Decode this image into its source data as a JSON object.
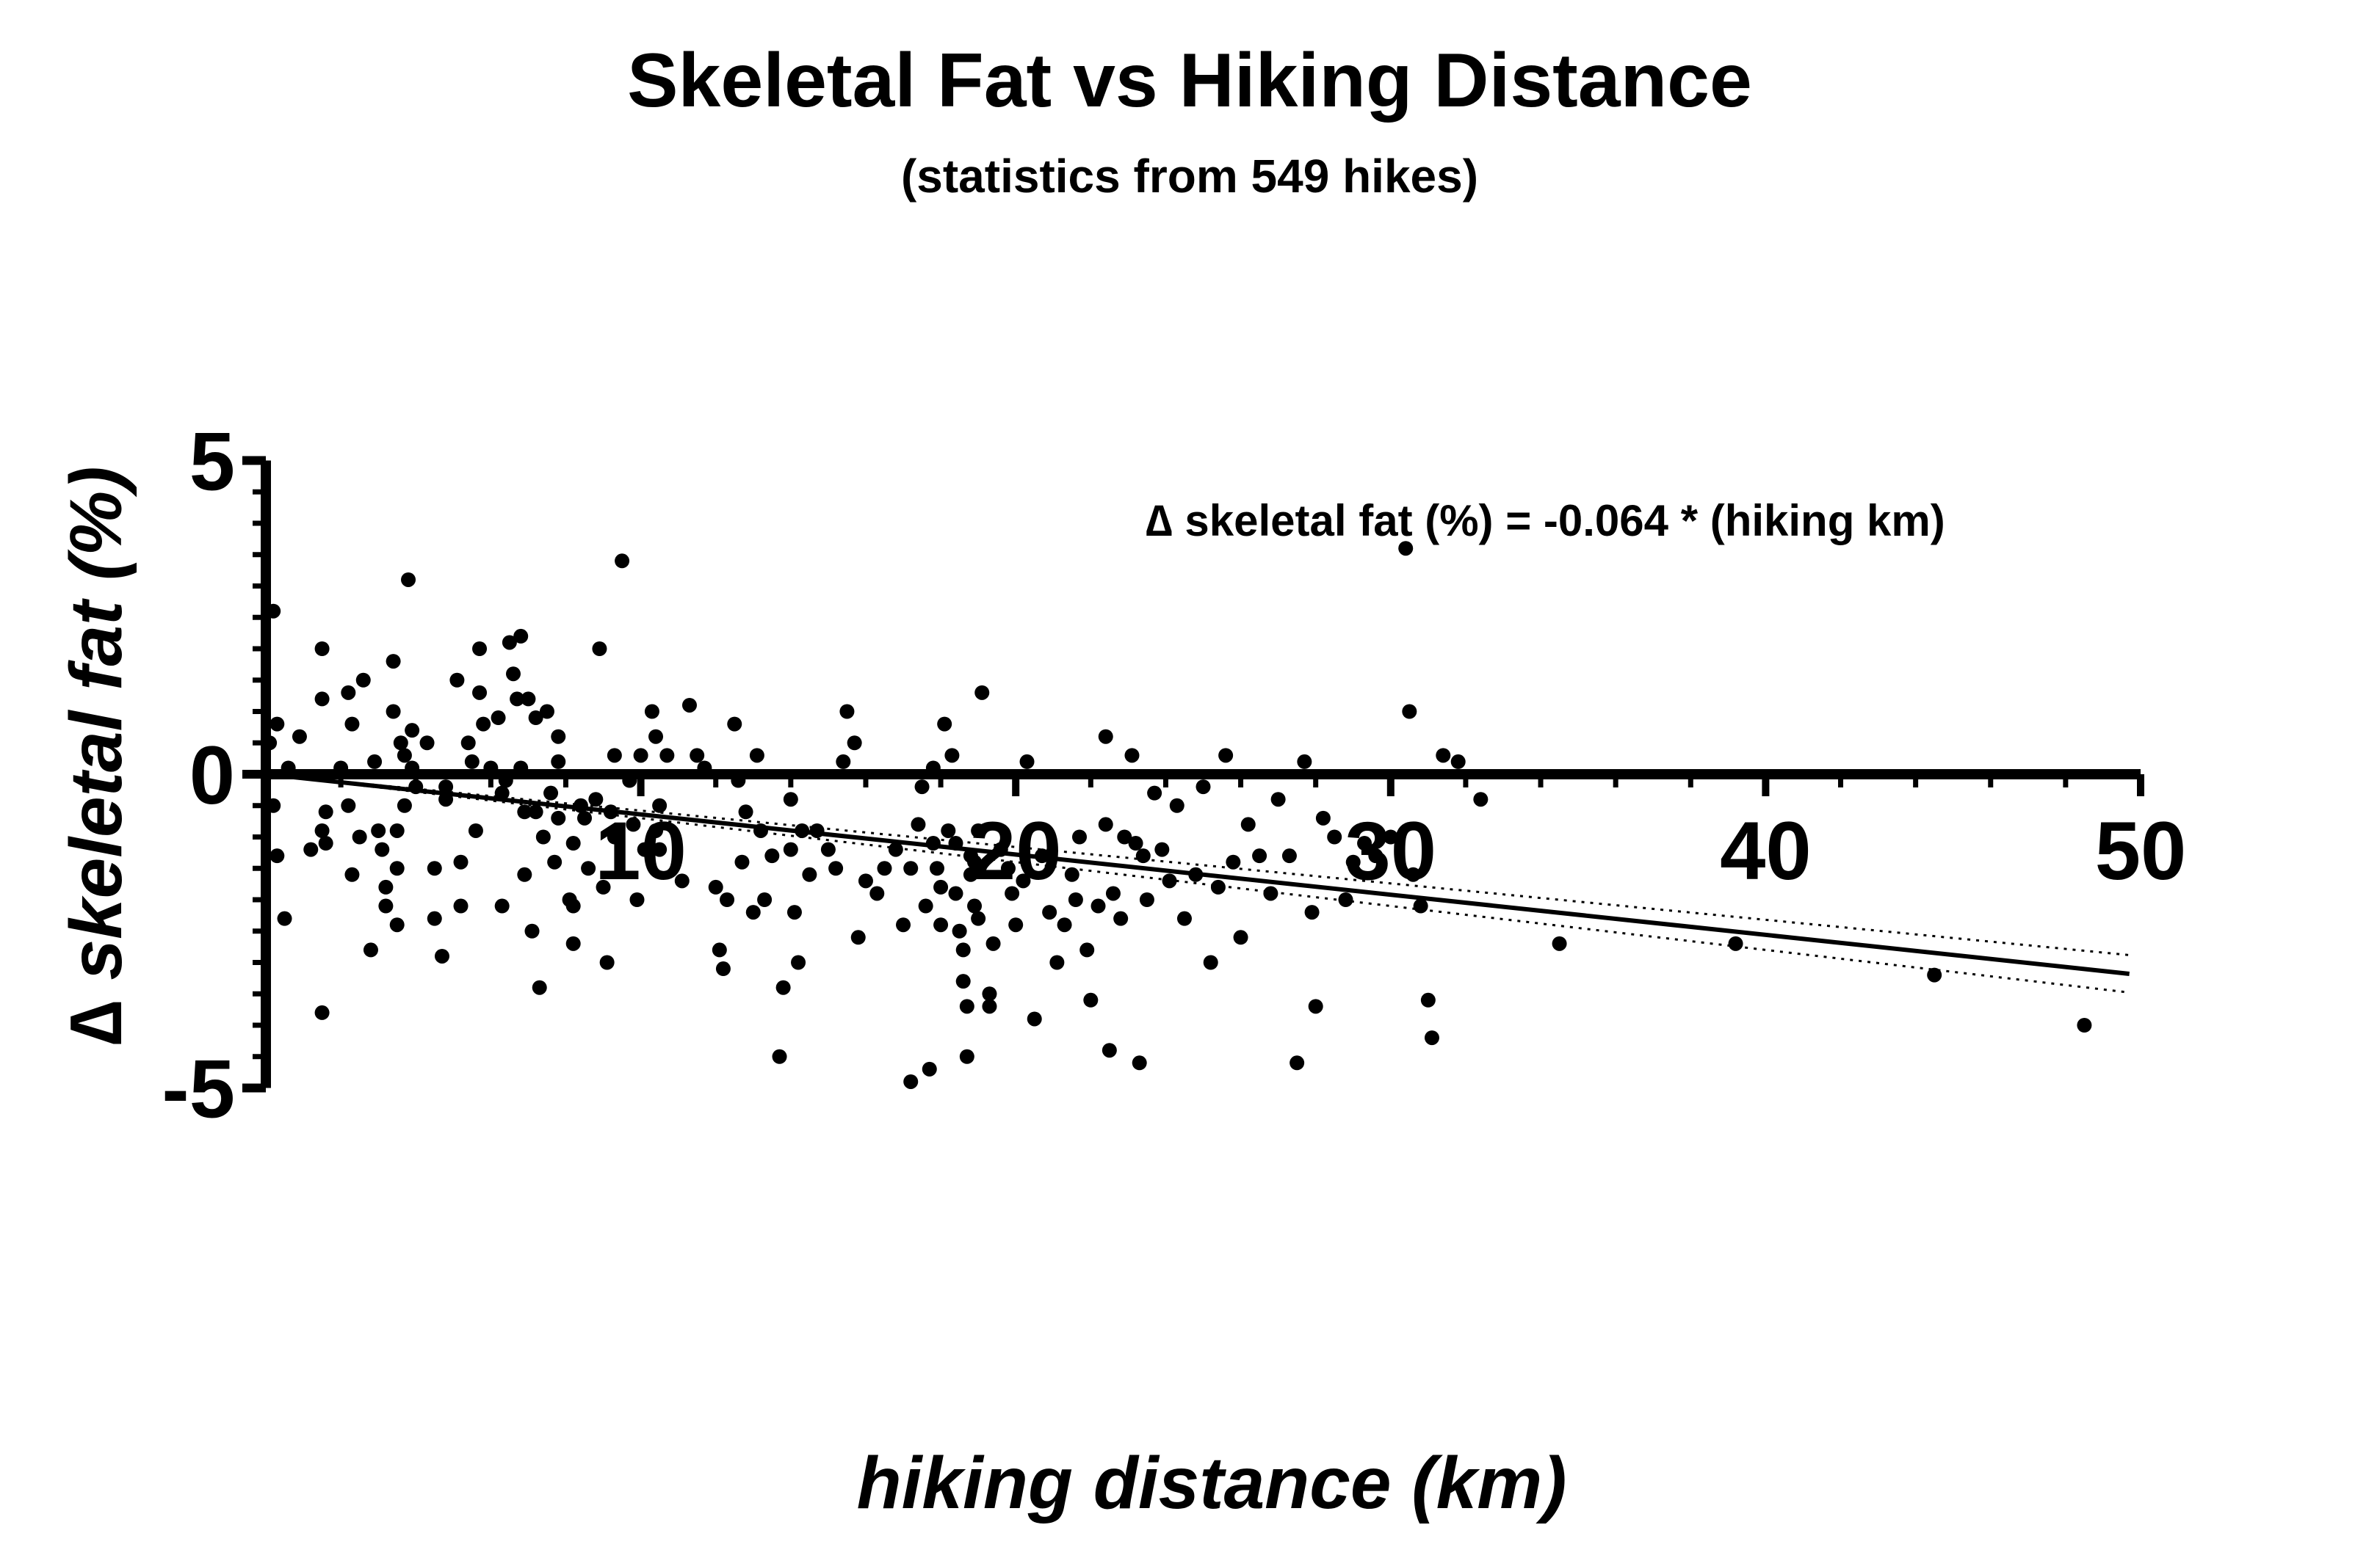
{
  "chart_data": {
    "type": "scatter",
    "title": "Skeletal Fat vs Hiking Distance",
    "subtitle": "(statistics from 549 hikes)",
    "xlabel": "hiking distance (km)",
    "ylabel": "∆ skeletal fat (%)",
    "xlim": [
      0,
      50
    ],
    "ylim": [
      -5,
      5
    ],
    "xticks": [
      10,
      20,
      30,
      40,
      50
    ],
    "xtick_labels": [
      "10",
      "20",
      "30",
      "40",
      "50"
    ],
    "yticks": [
      5,
      0,
      -5
    ],
    "ytick_labels": [
      "5",
      "0",
      "-5"
    ],
    "grid": false,
    "annotation": "∆ skeletal fat (%) = -0.064 * (hiking km)",
    "fit": {
      "slope": -0.064,
      "intercept": 0,
      "ci_slope_low": -0.058,
      "ci_slope_high": -0.07
    },
    "points": [
      [
        0.1,
        0.5
      ],
      [
        0.2,
        2.6
      ],
      [
        0.3,
        0.8
      ],
      [
        0.2,
        -0.5
      ],
      [
        0.3,
        -1.3
      ],
      [
        0.5,
        -2.3
      ],
      [
        0.6,
        0.1
      ],
      [
        0.9,
        0.6
      ],
      [
        1.2,
        -1.2
      ],
      [
        1.5,
        2.0
      ],
      [
        1.5,
        1.2
      ],
      [
        1.6,
        -0.6
      ],
      [
        1.5,
        -0.9
      ],
      [
        1.6,
        -1.1
      ],
      [
        1.5,
        -3.8
      ],
      [
        2.0,
        0.1
      ],
      [
        2.2,
        1.3
      ],
      [
        2.3,
        0.8
      ],
      [
        2.2,
        -0.5
      ],
      [
        2.3,
        -1.6
      ],
      [
        2.5,
        -1.0
      ],
      [
        2.6,
        1.5
      ],
      [
        2.8,
        -2.8
      ],
      [
        2.9,
        0.2
      ],
      [
        3.0,
        -0.9
      ],
      [
        3.1,
        -1.2
      ],
      [
        3.2,
        -1.8
      ],
      [
        3.2,
        -2.1
      ],
      [
        3.4,
        1.8
      ],
      [
        3.4,
        1.0
      ],
      [
        3.5,
        -0.9
      ],
      [
        3.5,
        -1.5
      ],
      [
        3.5,
        -2.4
      ],
      [
        3.6,
        0.5
      ],
      [
        3.7,
        0.3
      ],
      [
        3.7,
        -0.5
      ],
      [
        3.8,
        3.1
      ],
      [
        3.9,
        0.7
      ],
      [
        3.9,
        0.1
      ],
      [
        4.0,
        -0.2
      ],
      [
        4.3,
        0.5
      ],
      [
        4.5,
        -1.5
      ],
      [
        4.5,
        -2.3
      ],
      [
        4.7,
        -2.9
      ],
      [
        4.8,
        -0.2
      ],
      [
        4.8,
        -0.4
      ],
      [
        5.1,
        1.5
      ],
      [
        5.2,
        -1.4
      ],
      [
        5.2,
        -2.1
      ],
      [
        5.4,
        0.5
      ],
      [
        5.5,
        0.2
      ],
      [
        5.6,
        -0.9
      ],
      [
        5.7,
        1.3
      ],
      [
        5.7,
        2.0
      ],
      [
        5.8,
        0.8
      ],
      [
        6.0,
        0.1
      ],
      [
        6.2,
        0.9
      ],
      [
        6.3,
        -0.3
      ],
      [
        6.3,
        -2.1
      ],
      [
        6.4,
        -0.1
      ],
      [
        6.5,
        2.1
      ],
      [
        6.6,
        1.6
      ],
      [
        6.7,
        1.2
      ],
      [
        6.8,
        2.2
      ],
      [
        6.8,
        0.1
      ],
      [
        6.9,
        -1.6
      ],
      [
        6.9,
        -0.6
      ],
      [
        7.0,
        1.2
      ],
      [
        7.1,
        -2.5
      ],
      [
        7.2,
        0.9
      ],
      [
        7.2,
        -0.6
      ],
      [
        7.3,
        -3.4
      ],
      [
        7.4,
        -1.0
      ],
      [
        7.5,
        1.0
      ],
      [
        7.6,
        -0.3
      ],
      [
        7.7,
        -1.4
      ],
      [
        7.8,
        0.6
      ],
      [
        7.8,
        -0.7
      ],
      [
        7.8,
        0.2
      ],
      [
        8.1,
        -2.0
      ],
      [
        8.2,
        -2.7
      ],
      [
        8.2,
        -1.1
      ],
      [
        8.2,
        -2.1
      ],
      [
        8.4,
        -0.5
      ],
      [
        8.5,
        -0.7
      ],
      [
        8.6,
        -1.5
      ],
      [
        8.8,
        -0.4
      ],
      [
        8.9,
        2.0
      ],
      [
        9.0,
        -1.8
      ],
      [
        9.1,
        -3.0
      ],
      [
        9.2,
        -0.6
      ],
      [
        9.3,
        0.3
      ],
      [
        9.3,
        -1.0
      ],
      [
        9.5,
        3.4
      ],
      [
        9.7,
        -0.1
      ],
      [
        9.8,
        -0.8
      ],
      [
        9.9,
        -2.0
      ],
      [
        10.0,
        0.3
      ],
      [
        10.1,
        -1.2
      ],
      [
        10.3,
        1.0
      ],
      [
        10.4,
        0.6
      ],
      [
        10.4,
        -0.9
      ],
      [
        10.5,
        -1.2
      ],
      [
        10.5,
        -0.5
      ],
      [
        10.7,
        0.3
      ],
      [
        11.1,
        -1.7
      ],
      [
        11.3,
        1.1
      ],
      [
        11.5,
        0.3
      ],
      [
        11.7,
        0.1
      ],
      [
        12.0,
        -1.8
      ],
      [
        12.1,
        -2.8
      ],
      [
        12.2,
        -3.1
      ],
      [
        12.3,
        -2.0
      ],
      [
        12.5,
        0.8
      ],
      [
        12.6,
        -0.1
      ],
      [
        12.7,
        -1.4
      ],
      [
        12.8,
        -0.6
      ],
      [
        13.0,
        -2.2
      ],
      [
        13.1,
        0.3
      ],
      [
        13.2,
        -0.9
      ],
      [
        13.3,
        -2.0
      ],
      [
        13.5,
        -1.3
      ],
      [
        13.7,
        -4.5
      ],
      [
        13.8,
        -3.4
      ],
      [
        14.0,
        -0.4
      ],
      [
        14.0,
        -1.2
      ],
      [
        14.1,
        -2.2
      ],
      [
        14.2,
        -3.0
      ],
      [
        14.3,
        -0.9
      ],
      [
        14.5,
        -1.6
      ],
      [
        14.7,
        -0.9
      ],
      [
        15.0,
        -1.2
      ],
      [
        15.2,
        -1.5
      ],
      [
        15.4,
        0.2
      ],
      [
        15.5,
        1.0
      ],
      [
        15.7,
        0.5
      ],
      [
        15.8,
        -2.6
      ],
      [
        16.0,
        -1.7
      ],
      [
        16.3,
        -1.9
      ],
      [
        16.5,
        -1.5
      ],
      [
        16.8,
        -1.2
      ],
      [
        17.0,
        -2.4
      ],
      [
        17.2,
        -4.9
      ],
      [
        17.2,
        -1.5
      ],
      [
        17.4,
        -0.8
      ],
      [
        17.5,
        -0.2
      ],
      [
        17.6,
        -2.1
      ],
      [
        17.7,
        -4.7
      ],
      [
        17.8,
        -1.1
      ],
      [
        17.8,
        0.1
      ],
      [
        17.9,
        -1.5
      ],
      [
        18.0,
        -2.4
      ],
      [
        18.0,
        -1.8
      ],
      [
        18.1,
        0.8
      ],
      [
        18.2,
        -0.9
      ],
      [
        18.3,
        0.3
      ],
      [
        18.4,
        -1.9
      ],
      [
        18.4,
        -1.1
      ],
      [
        18.5,
        -2.5
      ],
      [
        18.6,
        -2.8
      ],
      [
        18.6,
        -3.3
      ],
      [
        18.7,
        -3.7
      ],
      [
        18.7,
        -4.5
      ],
      [
        18.8,
        -1.3
      ],
      [
        18.8,
        -1.6
      ],
      [
        18.9,
        -1.4
      ],
      [
        18.9,
        -2.1
      ],
      [
        19.0,
        -2.3
      ],
      [
        19.0,
        -0.9
      ],
      [
        19.1,
        1.3
      ],
      [
        19.3,
        -3.5
      ],
      [
        19.3,
        -3.7
      ],
      [
        19.4,
        -2.7
      ],
      [
        19.6,
        -1.2
      ],
      [
        19.8,
        -1.5
      ],
      [
        19.9,
        -1.9
      ],
      [
        20.0,
        -2.4
      ],
      [
        20.2,
        -1.7
      ],
      [
        20.3,
        0.2
      ],
      [
        20.5,
        -3.9
      ],
      [
        20.7,
        -1.3
      ],
      [
        20.9,
        -2.2
      ],
      [
        21.1,
        -3.0
      ],
      [
        21.3,
        -2.4
      ],
      [
        21.5,
        -1.6
      ],
      [
        21.6,
        -2.0
      ],
      [
        21.7,
        -1.0
      ],
      [
        21.9,
        -2.8
      ],
      [
        22.0,
        -3.6
      ],
      [
        22.2,
        -2.1
      ],
      [
        22.4,
        0.6
      ],
      [
        22.4,
        -0.8
      ],
      [
        22.5,
        -4.4
      ],
      [
        22.6,
        -1.9
      ],
      [
        22.8,
        -2.3
      ],
      [
        22.9,
        -1.0
      ],
      [
        23.1,
        0.3
      ],
      [
        23.2,
        -1.1
      ],
      [
        23.3,
        -4.6
      ],
      [
        23.4,
        -1.3
      ],
      [
        23.5,
        -2.0
      ],
      [
        23.7,
        -0.3
      ],
      [
        23.9,
        -1.2
      ],
      [
        24.1,
        -1.7
      ],
      [
        24.3,
        -0.5
      ],
      [
        24.5,
        -2.3
      ],
      [
        24.8,
        -1.6
      ],
      [
        25.0,
        -0.2
      ],
      [
        25.2,
        -3.0
      ],
      [
        25.4,
        -1.8
      ],
      [
        25.6,
        0.3
      ],
      [
        25.8,
        -1.4
      ],
      [
        26.0,
        -2.6
      ],
      [
        26.2,
        -0.8
      ],
      [
        26.5,
        -1.3
      ],
      [
        26.8,
        -1.9
      ],
      [
        27.0,
        -0.4
      ],
      [
        27.3,
        -1.3
      ],
      [
        27.5,
        -4.6
      ],
      [
        27.7,
        0.2
      ],
      [
        27.9,
        -2.2
      ],
      [
        28.0,
        -3.7
      ],
      [
        28.2,
        -0.7
      ],
      [
        28.5,
        -1.0
      ],
      [
        28.8,
        -2.0
      ],
      [
        29.0,
        -1.4
      ],
      [
        29.3,
        -1.1
      ],
      [
        29.6,
        -1.3
      ],
      [
        30.0,
        -1.0
      ],
      [
        30.4,
        3.6
      ],
      [
        30.5,
        1.0
      ],
      [
        30.6,
        -1.6
      ],
      [
        30.8,
        -2.1
      ],
      [
        31.0,
        -3.6
      ],
      [
        31.1,
        -4.2
      ],
      [
        31.4,
        0.3
      ],
      [
        31.8,
        0.2
      ],
      [
        32.4,
        -0.4
      ],
      [
        34.5,
        -2.7
      ],
      [
        39.2,
        -2.7
      ],
      [
        44.5,
        -3.2
      ],
      [
        48.5,
        -4.0
      ]
    ],
    "point_color": "#000000",
    "line_color": "#000000"
  }
}
